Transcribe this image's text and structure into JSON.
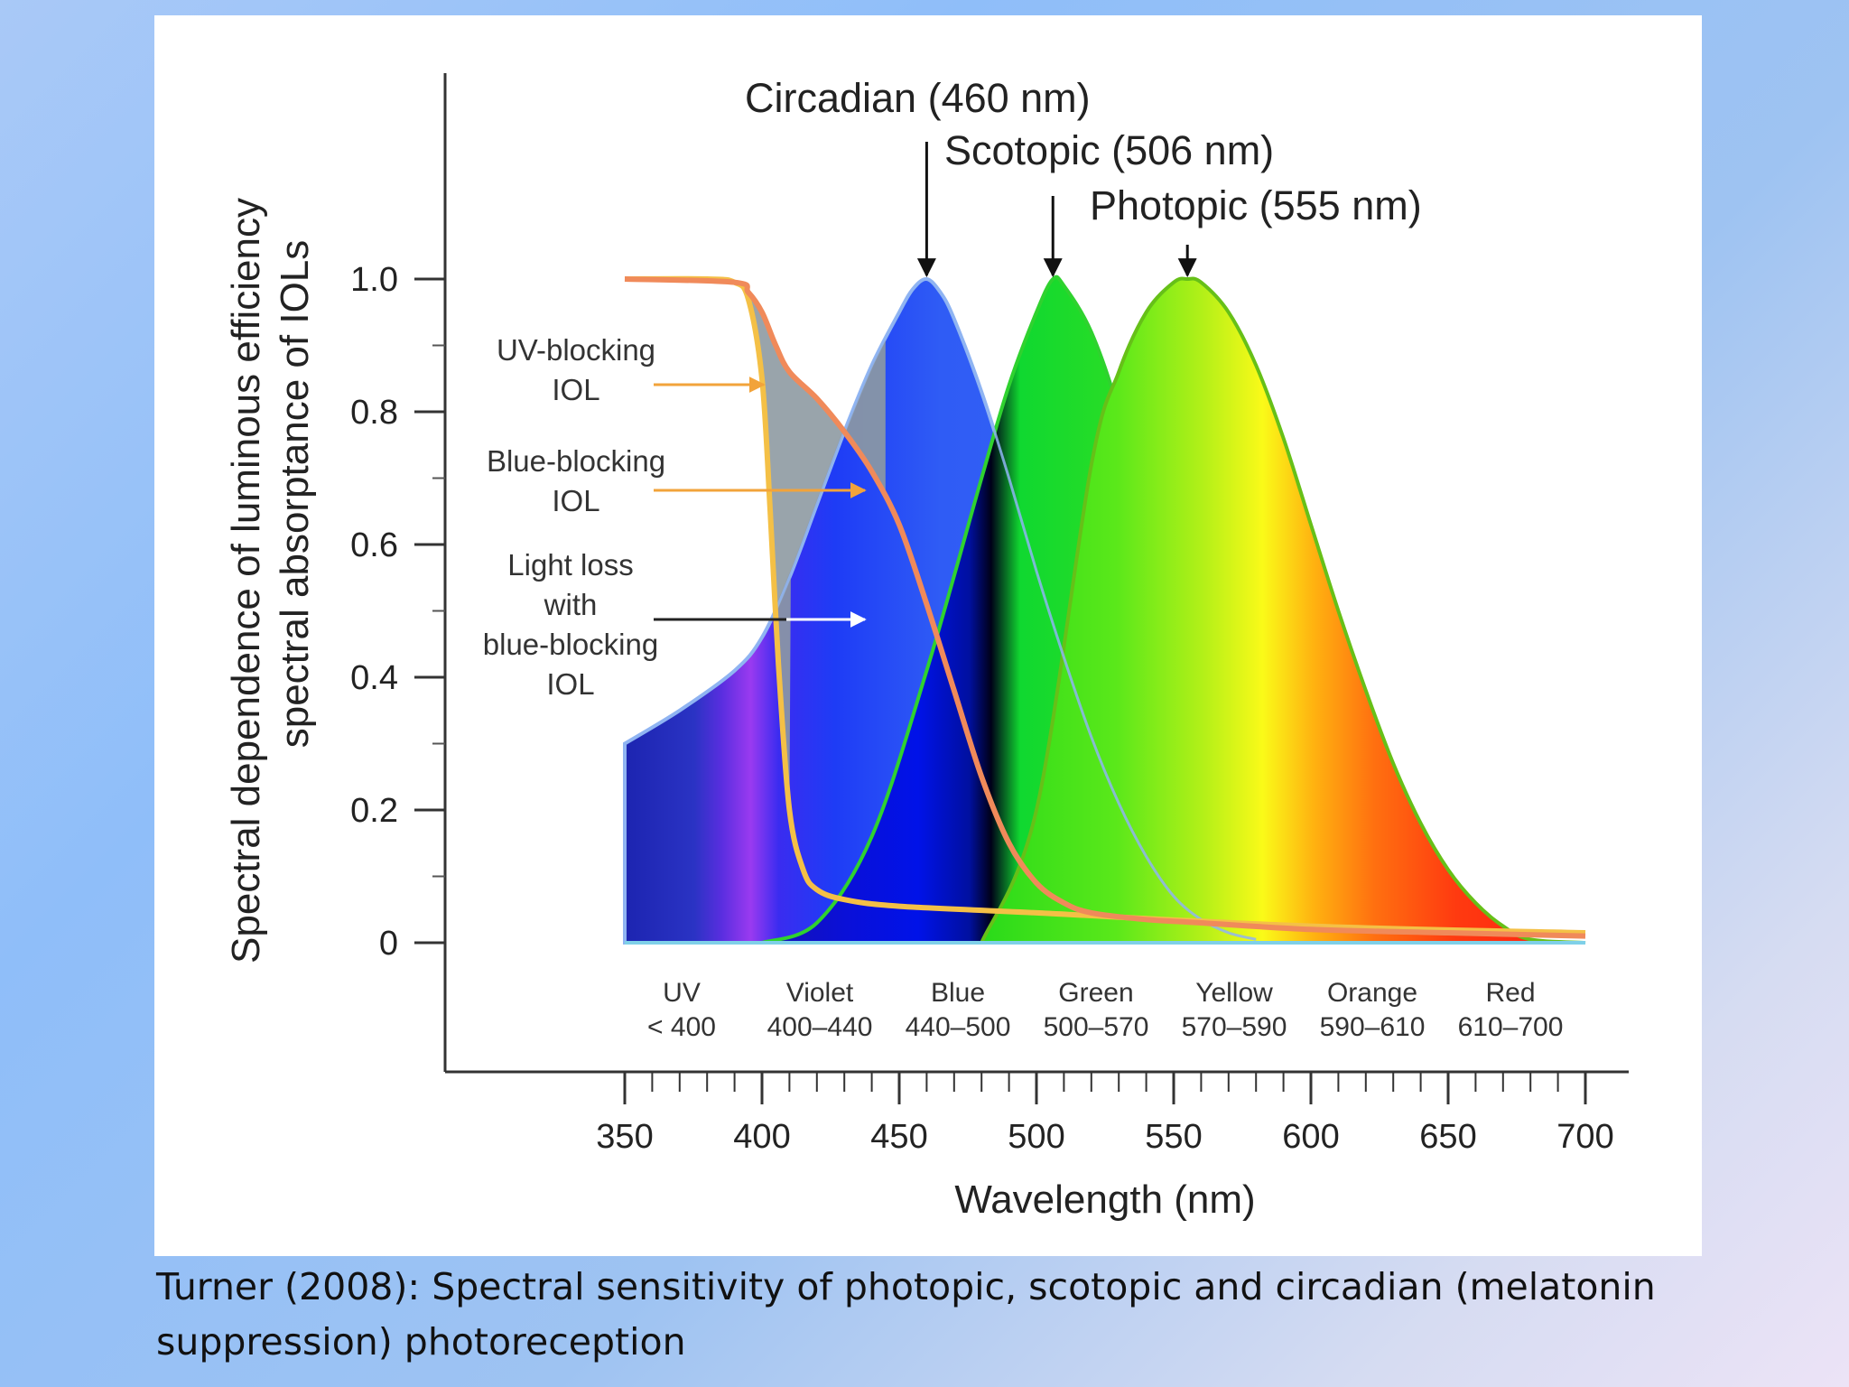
{
  "caption": {
    "line1": "Turner (2008): Spectral sensitivity of photopic, scotopic and circadian (melatonin",
    "line2": "suppression) photoreception"
  },
  "chart_data": {
    "type": "area",
    "xlabel": "Wavelength (nm)",
    "ylabel_line1": "Spectral dependence of luminous efficiency",
    "ylabel_line2": "spectral absorptance of IOLs",
    "xlim": [
      350,
      700
    ],
    "ylim": [
      0,
      1.0
    ],
    "x_ticks": [
      350,
      400,
      450,
      500,
      550,
      600,
      650,
      700
    ],
    "x_tick_labels": [
      "350",
      "400",
      "450",
      "500",
      "550",
      "600",
      "650",
      "700"
    ],
    "y_ticks": [
      0,
      0.2,
      0.4,
      0.6,
      0.8,
      1.0
    ],
    "y_tick_labels": [
      "0",
      "0.2",
      "0.4",
      "0.6",
      "0.8",
      "1.0"
    ],
    "peaks": [
      {
        "label": "Circadian (460 nm)",
        "x": 460
      },
      {
        "label": "Scotopic (506 nm)",
        "x": 506
      },
      {
        "label": "Photopic (555 nm)",
        "x": 555
      }
    ],
    "bands": [
      {
        "name": "UV",
        "range": "< 400"
      },
      {
        "name": "Violet",
        "range": "400–440"
      },
      {
        "name": "Blue",
        "range": "440–500"
      },
      {
        "name": "Green",
        "range": "500–570"
      },
      {
        "name": "Yellow",
        "range": "570–590"
      },
      {
        "name": "Orange",
        "range": "590–610"
      },
      {
        "name": "Red",
        "range": "610–700"
      }
    ],
    "annotations": [
      {
        "lines": [
          "UV-blocking",
          "IOL"
        ]
      },
      {
        "lines": [
          "Blue-blocking",
          "IOL"
        ]
      },
      {
        "lines": [
          "Light loss",
          "with",
          "blue-blocking",
          "IOL"
        ]
      }
    ],
    "series": [
      {
        "x": [
          350,
          370,
          390,
          400,
          410,
          420,
          430,
          440,
          450,
          455,
          460,
          465,
          470,
          480,
          490,
          500,
          510,
          520,
          530,
          540,
          550,
          560,
          570,
          580
        ],
        "values": [
          0.3,
          0.35,
          0.41,
          0.46,
          0.55,
          0.66,
          0.77,
          0.87,
          0.95,
          0.985,
          1.0,
          0.98,
          0.94,
          0.83,
          0.7,
          0.56,
          0.43,
          0.31,
          0.21,
          0.13,
          0.07,
          0.035,
          0.015,
          0.005
        ]
      },
      {
        "x": [
          400,
          420,
          440,
          460,
          480,
          490,
          500,
          506,
          510,
          520,
          530,
          540,
          550,
          560,
          570,
          580,
          590,
          600
        ],
        "values": [
          0.0,
          0.03,
          0.16,
          0.41,
          0.7,
          0.84,
          0.95,
          1.0,
          0.99,
          0.92,
          0.8,
          0.63,
          0.45,
          0.29,
          0.16,
          0.08,
          0.03,
          0.0
        ]
      },
      {
        "x": [
          480,
          500,
          520,
          530,
          540,
          550,
          555,
          560,
          570,
          580,
          590,
          600,
          610,
          620,
          630,
          640,
          650,
          660,
          670,
          680,
          700
        ],
        "values": [
          0.0,
          0.2,
          0.72,
          0.86,
          0.95,
          0.995,
          1.0,
          0.995,
          0.95,
          0.87,
          0.76,
          0.63,
          0.5,
          0.38,
          0.27,
          0.18,
          0.11,
          0.06,
          0.025,
          0.005,
          0.0
        ]
      },
      {
        "x": [
          350,
          380,
          390,
          395,
          400,
          403,
          406,
          410,
          415,
          420,
          430,
          450,
          500,
          600,
          700
        ],
        "values": [
          1.0,
          1.0,
          0.995,
          0.97,
          0.85,
          0.65,
          0.42,
          0.2,
          0.11,
          0.08,
          0.065,
          0.055,
          0.045,
          0.025,
          0.015
        ]
      },
      {
        "x": [
          350,
          390,
          395,
          400,
          405,
          410,
          420,
          430,
          440,
          450,
          460,
          470,
          480,
          490,
          500,
          510,
          520,
          540,
          560,
          600,
          650,
          700
        ],
        "values": [
          1.0,
          0.995,
          0.98,
          0.95,
          0.9,
          0.86,
          0.82,
          0.77,
          0.71,
          0.63,
          0.51,
          0.38,
          0.25,
          0.15,
          0.09,
          0.06,
          0.045,
          0.035,
          0.03,
          0.02,
          0.015,
          0.01
        ]
      }
    ],
    "colors": {
      "circadian_edge": "#8fb4f2",
      "scotopic_edge": "#2fd22f",
      "photopic_edge": "#66c018",
      "uv_blocking_curve": "#f4c046",
      "blue_blocking_curve": "#f08a5a",
      "light_loss_fill": "#8e9aa2",
      "arrow_orange": "#f2a33a"
    },
    "grid": false,
    "legend": "none"
  }
}
